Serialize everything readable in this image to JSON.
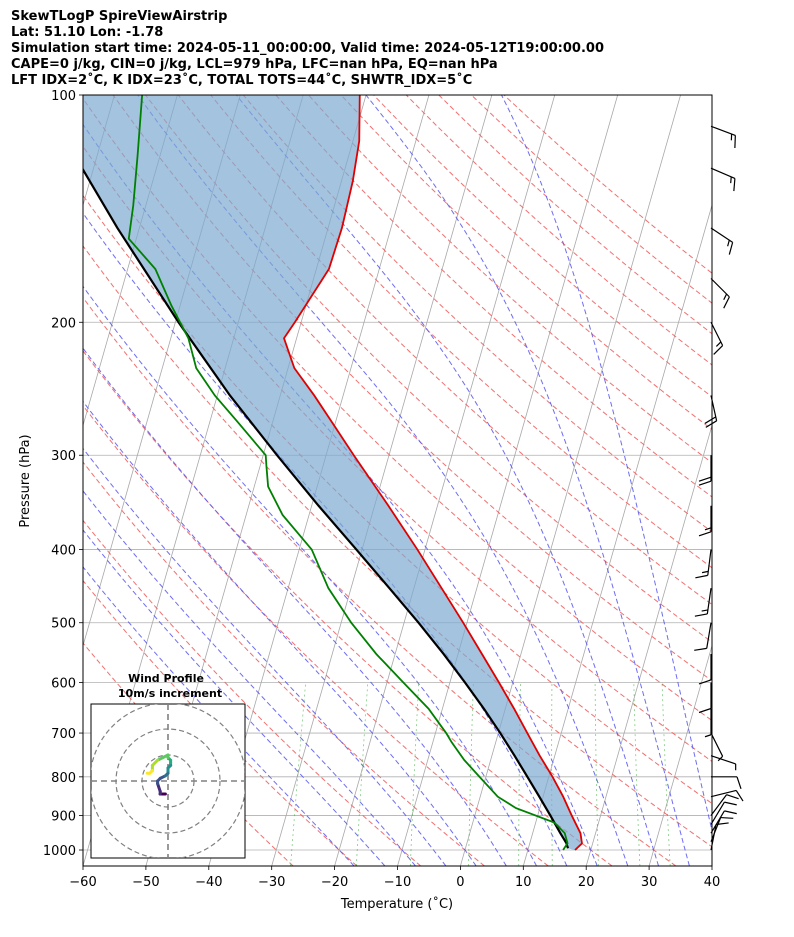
{
  "header": {
    "line1": "SkewTLogP SpireViewAirstrip",
    "line2": "Lat: 51.10   Lon: -1.78",
    "line3": "Simulation start time: 2024-05-11_00:00:00, Valid time: 2024-05-12T19:00:00.00",
    "line4": "CAPE=0 j/kg, CIN=0 j/kg, LCL=979 hPa, LFC=nan hPa, EQ=nan hPa",
    "line5": "LFT IDX=2$^\\circ$C, K IDX=23$^\\circ$C, TOTAL TOTS=44$^\\circ$C, SHWTR_IDX=5$^\\circ$C"
  },
  "header_display": {
    "line5": "LFT IDX=2˚C, K IDX=23˚C, TOTAL TOTS=44˚C, SHWTR_IDX=5˚C"
  },
  "chart_data": {
    "type": "line",
    "subtype": "skew-t log-p",
    "xlabel": "Temperature (˚C)",
    "ylabel": "Pressure (hPa)",
    "xlim": [
      -60,
      40
    ],
    "ylim": [
      1050,
      100
    ],
    "yscale": "log",
    "x_ticks": [
      -60,
      -50,
      -40,
      -30,
      -20,
      -10,
      0,
      10,
      20,
      30,
      40
    ],
    "y_ticks": [
      1000,
      900,
      800,
      700,
      600,
      500,
      400,
      300,
      200,
      100
    ],
    "grid": true,
    "series": [
      {
        "role": "temperature",
        "color": "#e00000",
        "points": [
          [
            1000,
            17.5
          ],
          [
            980,
            18.3
          ],
          [
            950,
            17.6
          ],
          [
            900,
            15.4
          ],
          [
            850,
            13.2
          ],
          [
            800,
            10.6
          ],
          [
            750,
            7.6
          ],
          [
            700,
            4.6
          ],
          [
            650,
            1.4
          ],
          [
            600,
            -2.2
          ],
          [
            550,
            -6.2
          ],
          [
            500,
            -10.6
          ],
          [
            450,
            -15.6
          ],
          [
            400,
            -21.2
          ],
          [
            350,
            -27.8
          ],
          [
            300,
            -35.6
          ],
          [
            270,
            -40.8
          ],
          [
            250,
            -44.6
          ],
          [
            230,
            -49.0
          ],
          [
            210,
            -52.0
          ],
          [
            200,
            -51.0
          ],
          [
            170,
            -48.0
          ],
          [
            150,
            -47.8
          ],
          [
            130,
            -48.2
          ],
          [
            115,
            -49.0
          ],
          [
            100,
            -51.0
          ]
        ]
      },
      {
        "role": "dewpoint",
        "color": "#008000",
        "points": [
          [
            1000,
            15.6
          ],
          [
            980,
            16.0
          ],
          [
            950,
            15.1
          ],
          [
            920,
            13.0
          ],
          [
            880,
            6.2
          ],
          [
            850,
            2.8
          ],
          [
            800,
            -1.0
          ],
          [
            760,
            -4.2
          ],
          [
            720,
            -7.0
          ],
          [
            700,
            -8.3
          ],
          [
            650,
            -12.2
          ],
          [
            600,
            -17.4
          ],
          [
            550,
            -23.0
          ],
          [
            500,
            -28.4
          ],
          [
            450,
            -33.6
          ],
          [
            400,
            -38.0
          ],
          [
            360,
            -44.2
          ],
          [
            330,
            -47.8
          ],
          [
            310,
            -49.0
          ],
          [
            300,
            -49.6
          ],
          [
            270,
            -55.8
          ],
          [
            250,
            -60.4
          ],
          [
            230,
            -64.6
          ],
          [
            210,
            -67.2
          ],
          [
            190,
            -71.4
          ],
          [
            170,
            -75.6
          ],
          [
            155,
            -81.2
          ],
          [
            140,
            -82.0
          ],
          [
            120,
            -83.6
          ],
          [
            100,
            -85.6
          ]
        ]
      },
      {
        "role": "parcel",
        "color": "#000000",
        "points": [
          [
            995,
            16.3
          ],
          [
            979,
            15.8
          ],
          [
            950,
            14.4
          ],
          [
            900,
            12.0
          ],
          [
            850,
            9.4
          ],
          [
            800,
            6.6
          ],
          [
            750,
            3.6
          ],
          [
            700,
            0.3
          ],
          [
            650,
            -3.4
          ],
          [
            600,
            -7.6
          ],
          [
            550,
            -12.3
          ],
          [
            500,
            -17.7
          ],
          [
            450,
            -23.9
          ],
          [
            400,
            -30.9
          ],
          [
            350,
            -38.9
          ],
          [
            300,
            -47.8
          ],
          [
            250,
            -58.0
          ],
          [
            200,
            -69.5
          ],
          [
            150,
            -83.5
          ],
          [
            100,
            -102.0
          ]
        ]
      }
    ],
    "wind_barbs": [
      {
        "p": 1000,
        "u": -1,
        "v": -5
      },
      {
        "p": 975,
        "u": -2,
        "v": -5
      },
      {
        "p": 950,
        "u": -3,
        "v": -5
      },
      {
        "p": 925,
        "u": -3,
        "v": -5
      },
      {
        "p": 900,
        "u": -3,
        "v": -4
      },
      {
        "p": 850,
        "u": -4,
        "v": -1
      },
      {
        "p": 800,
        "u": -4,
        "v": 0
      },
      {
        "p": 750,
        "u": -3,
        "v": 1
      },
      {
        "p": 700,
        "u": -1,
        "v": 2
      },
      {
        "p": 650,
        "u": 0,
        "v": 3
      },
      {
        "p": 600,
        "u": 0,
        "v": 4
      },
      {
        "p": 550,
        "u": 0,
        "v": 5
      },
      {
        "p": 500,
        "u": 1,
        "v": 6
      },
      {
        "p": 450,
        "u": 1,
        "v": 7
      },
      {
        "p": 400,
        "u": 1,
        "v": 8
      },
      {
        "p": 350,
        "u": 0,
        "v": 9
      },
      {
        "p": 300,
        "u": 0,
        "v": 10
      },
      {
        "p": 250,
        "u": -2,
        "v": 9
      },
      {
        "p": 200,
        "u": -4,
        "v": 8
      },
      {
        "p": 175,
        "u": -6,
        "v": 6
      },
      {
        "p": 150,
        "u": -6,
        "v": 4
      },
      {
        "p": 125,
        "u": -7,
        "v": 3
      },
      {
        "p": 110,
        "u": -8,
        "v": 3
      }
    ],
    "hodograph": {
      "title_line1": "Wind Profile",
      "title_line2": "10m/s increment",
      "rings_ms": [
        10,
        20,
        30
      ],
      "points": [
        [
          -1,
          -5
        ],
        [
          -2,
          -5
        ],
        [
          -3,
          -5
        ],
        [
          -3,
          -5
        ],
        [
          -3,
          -4
        ],
        [
          -4,
          -1
        ],
        [
          -4,
          0
        ],
        [
          -3,
          1
        ],
        [
          -1,
          2
        ],
        [
          0,
          3
        ],
        [
          0,
          4
        ],
        [
          0,
          5
        ],
        [
          1,
          6
        ],
        [
          1,
          7
        ],
        [
          1,
          8
        ],
        [
          0,
          9
        ],
        [
          0,
          10
        ],
        [
          -2,
          9
        ],
        [
          -4,
          8
        ],
        [
          -6,
          6
        ],
        [
          -6,
          4
        ],
        [
          -7,
          3
        ],
        [
          -8,
          3
        ]
      ]
    }
  }
}
